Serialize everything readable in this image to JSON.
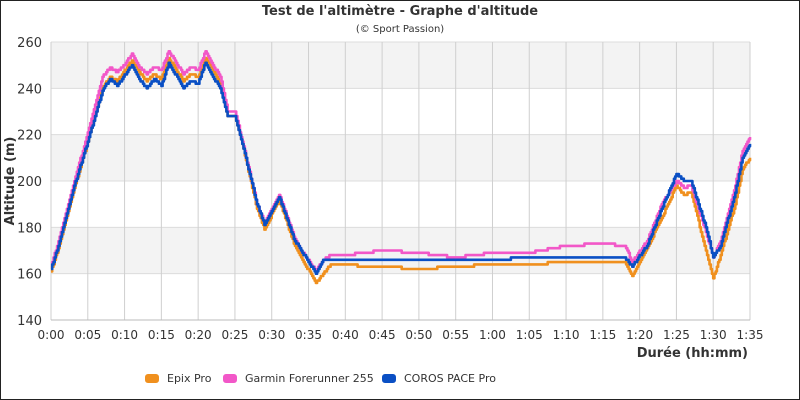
{
  "chart_data": {
    "type": "line",
    "title": "Test de l'altimètre - Graphe d'altitude",
    "subtitle": "(© Sport Passion)",
    "xlabel": "Durée (hh:mm)",
    "ylabel": "Altitude (m)",
    "xlim": [
      "0:00",
      "1:35"
    ],
    "ylim": [
      140,
      260
    ],
    "x_ticks": [
      "0:00",
      "0:05",
      "0:10",
      "0:15",
      "0:20",
      "0:25",
      "0:30",
      "0:35",
      "0:40",
      "0:45",
      "0:50",
      "0:55",
      "1:00",
      "1:05",
      "1:10",
      "1:15",
      "1:20",
      "1:25",
      "1:30",
      "1:35"
    ],
    "y_ticks": [
      140,
      160,
      180,
      200,
      220,
      240,
      260
    ],
    "grid": true,
    "legend_placement": "bottom",
    "series": [
      {
        "name": "Epix Pro",
        "color": "#f0901e",
        "points": [
          [
            "0:00",
            161
          ],
          [
            "0:01",
            171
          ],
          [
            "0:03",
            195
          ],
          [
            "0:05",
            217
          ],
          [
            "0:07",
            240
          ],
          [
            "0:08",
            245
          ],
          [
            "0:09",
            243
          ],
          [
            "0:11",
            252
          ],
          [
            "0:12",
            247
          ],
          [
            "0:13",
            243
          ],
          [
            "0:14",
            246
          ],
          [
            "0:15",
            244
          ],
          [
            "0:16",
            253
          ],
          [
            "0:18",
            243
          ],
          [
            "0:19",
            246
          ],
          [
            "0:20",
            245
          ],
          [
            "0:21",
            253
          ],
          [
            "0:22",
            248
          ],
          [
            "0:23",
            242
          ],
          [
            "0:24",
            228
          ],
          [
            "0:25",
            228
          ],
          [
            "0:26",
            216
          ],
          [
            "0:28",
            188
          ],
          [
            "0:29",
            179
          ],
          [
            "0:31",
            192
          ],
          [
            "0:33",
            173
          ],
          [
            "0:34",
            167
          ],
          [
            "0:36",
            156
          ],
          [
            "0:37",
            160
          ],
          [
            "0:38",
            164
          ],
          [
            "0:45",
            163
          ],
          [
            "0:50",
            162
          ],
          [
            "0:55",
            163
          ],
          [
            "1:00",
            164
          ],
          [
            "1:05",
            164
          ],
          [
            "1:10",
            165
          ],
          [
            "1:15",
            165
          ],
          [
            "1:18",
            165
          ],
          [
            "1:19",
            159
          ],
          [
            "1:21",
            171
          ],
          [
            "1:23",
            184
          ],
          [
            "1:25",
            198
          ],
          [
            "1:26",
            194
          ],
          [
            "1:27",
            195
          ],
          [
            "1:29",
            170
          ],
          [
            "1:30",
            158
          ],
          [
            "1:31",
            168
          ],
          [
            "1:33",
            190
          ],
          [
            "1:34",
            205
          ],
          [
            "1:35",
            210
          ]
        ]
      },
      {
        "name": "Garmin Forerunner 255",
        "color": "#f257c8",
        "points": [
          [
            "0:00",
            163
          ],
          [
            "0:01",
            174
          ],
          [
            "0:03",
            198
          ],
          [
            "0:05",
            221
          ],
          [
            "0:07",
            245
          ],
          [
            "0:08",
            249
          ],
          [
            "0:09",
            247
          ],
          [
            "0:10",
            250
          ],
          [
            "0:11",
            255
          ],
          [
            "0:12",
            249
          ],
          [
            "0:13",
            246
          ],
          [
            "0:14",
            249
          ],
          [
            "0:15",
            248
          ],
          [
            "0:16",
            256
          ],
          [
            "0:18",
            246
          ],
          [
            "0:19",
            249
          ],
          [
            "0:20",
            248
          ],
          [
            "0:21",
            256
          ],
          [
            "0:22",
            250
          ],
          [
            "0:23",
            245
          ],
          [
            "0:24",
            230
          ],
          [
            "0:25",
            230
          ],
          [
            "0:26",
            217
          ],
          [
            "0:28",
            190
          ],
          [
            "0:29",
            182
          ],
          [
            "0:31",
            194
          ],
          [
            "0:33",
            176
          ],
          [
            "0:34",
            170
          ],
          [
            "0:36",
            161
          ],
          [
            "0:37",
            166
          ],
          [
            "0:38",
            168
          ],
          [
            "0:40",
            168
          ],
          [
            "0:45",
            170
          ],
          [
            "0:50",
            169
          ],
          [
            "0:55",
            167
          ],
          [
            "1:00",
            169
          ],
          [
            "1:05",
            169
          ],
          [
            "1:10",
            172
          ],
          [
            "1:15",
            173
          ],
          [
            "1:18",
            172
          ],
          [
            "1:19",
            165
          ],
          [
            "1:21",
            174
          ],
          [
            "1:23",
            190
          ],
          [
            "1:25",
            200
          ],
          [
            "1:26",
            197
          ],
          [
            "1:27",
            198
          ],
          [
            "1:29",
            178
          ],
          [
            "1:30",
            167
          ],
          [
            "1:31",
            174
          ],
          [
            "1:33",
            198
          ],
          [
            "1:34",
            213
          ],
          [
            "1:35",
            219
          ]
        ]
      },
      {
        "name": "COROS PACE Pro",
        "color": "#0a4fc4",
        "points": [
          [
            "0:00",
            162
          ],
          [
            "0:01",
            172
          ],
          [
            "0:03",
            196
          ],
          [
            "0:05",
            217
          ],
          [
            "0:07",
            239
          ],
          [
            "0:08",
            244
          ],
          [
            "0:09",
            241
          ],
          [
            "0:11",
            250
          ],
          [
            "0:12",
            244
          ],
          [
            "0:13",
            240
          ],
          [
            "0:14",
            244
          ],
          [
            "0:15",
            241
          ],
          [
            "0:16",
            251
          ],
          [
            "0:18",
            240
          ],
          [
            "0:19",
            243
          ],
          [
            "0:20",
            242
          ],
          [
            "0:21",
            251
          ],
          [
            "0:22",
            245
          ],
          [
            "0:23",
            240
          ],
          [
            "0:24",
            228
          ],
          [
            "0:25",
            228
          ],
          [
            "0:26",
            216
          ],
          [
            "0:28",
            190
          ],
          [
            "0:29",
            181
          ],
          [
            "0:31",
            193
          ],
          [
            "0:33",
            175
          ],
          [
            "0:34",
            170
          ],
          [
            "0:36",
            160
          ],
          [
            "0:37",
            166
          ],
          [
            "0:40",
            166
          ],
          [
            "0:45",
            166
          ],
          [
            "0:50",
            166
          ],
          [
            "0:55",
            166
          ],
          [
            "1:00",
            166
          ],
          [
            "1:05",
            167
          ],
          [
            "1:10",
            167
          ],
          [
            "1:15",
            167
          ],
          [
            "1:18",
            167
          ],
          [
            "1:19",
            163
          ],
          [
            "1:21",
            172
          ],
          [
            "1:23",
            188
          ],
          [
            "1:25",
            203
          ],
          [
            "1:26",
            200
          ],
          [
            "1:27",
            200
          ],
          [
            "1:29",
            180
          ],
          [
            "1:30",
            167
          ],
          [
            "1:31",
            172
          ],
          [
            "1:33",
            195
          ],
          [
            "1:34",
            210
          ],
          [
            "1:35",
            216
          ]
        ]
      }
    ]
  }
}
